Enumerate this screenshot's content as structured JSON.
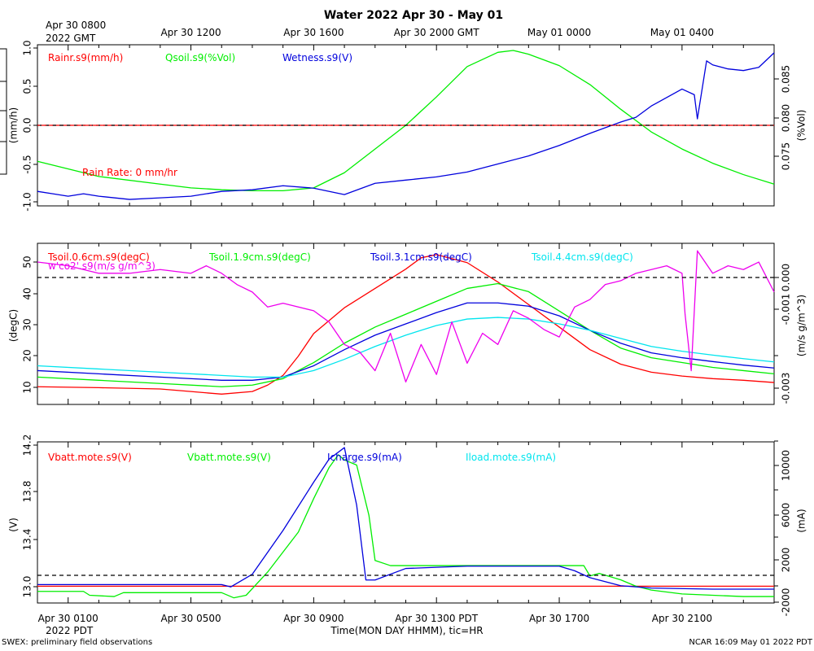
{
  "title": "Water 2022 Apr 30 - May 01",
  "top_time_labels": [
    "Apr 30 0800",
    "Apr 30 1200",
    "Apr 30 1600",
    "Apr 30 2000 GMT",
    "May 01 0000",
    "May 01 0400"
  ],
  "top_year_label": "2022 GMT",
  "bottom_time_labels": [
    "Apr 30 0100",
    "Apr 30 0500",
    "Apr 30 0900",
    "Apr 30 1300 PDT",
    "Apr 30 1700",
    "Apr 30 2100"
  ],
  "bottom_year_label": "2022 PDT",
  "xlabel": "Time(MON DAY HHMM), tic=HR",
  "footer_left": "SWEX: preliminary field observations",
  "footer_right": "NCAR 16:09 May 01 2022 PDT",
  "colors": {
    "red": "#ff0000",
    "green": "#00ee00",
    "blue": "#0000dd",
    "cyan": "#00e5ee",
    "magenta": "#ee00ee",
    "black": "#000000"
  },
  "chart_data": [
    {
      "type": "line",
      "panel": "water",
      "x_unit": "hours since Apr 30 0000 PDT",
      "xlim": [
        0,
        24
      ],
      "left_axis": {
        "label": "(mm/h)",
        "ticks": [
          "1.0",
          "0.5",
          "0.0",
          "-0.5",
          "-1.0"
        ],
        "ylim": [
          -1.0,
          1.0
        ]
      },
      "right_axis": {
        "label": "(%Vol)",
        "ticks": [
          "0.085",
          "0.080",
          "0.075"
        ],
        "ylim": [
          0.0715,
          0.0885
        ]
      },
      "annotation": "Rain Rate: 0 mm/hr",
      "series": [
        {
          "name": "Rainr.s9(mm/h)",
          "color": "red",
          "axis": "left",
          "x": [
            0,
            24
          ],
          "values": [
            0,
            0
          ]
        },
        {
          "name": "Qsoil.s9(%Vol)",
          "color": "green",
          "axis": "right",
          "x": [
            0,
            2,
            4,
            5,
            6,
            7,
            8,
            9,
            10,
            11,
            12,
            13,
            14,
            15,
            15.5,
            16,
            17,
            18,
            19,
            20,
            21,
            22,
            23,
            24
          ],
          "values": [
            0.0762,
            0.0746,
            0.0738,
            0.0734,
            0.0732,
            0.0731,
            0.0731,
            0.0734,
            0.075,
            0.0775,
            0.08,
            0.083,
            0.0862,
            0.0877,
            0.0879,
            0.0875,
            0.0863,
            0.0843,
            0.0817,
            0.0793,
            0.0775,
            0.076,
            0.0748,
            0.0738
          ]
        },
        {
          "name": "Wetness.s9(V)",
          "color": "blue",
          "axis": "none",
          "x": [
            0,
            0.5,
            1,
            1.5,
            2,
            3,
            4,
            5,
            6,
            7,
            8,
            9,
            10,
            11,
            12,
            13,
            14,
            15,
            16,
            17,
            18,
            19,
            19.5,
            20,
            21,
            21.4,
            21.5,
            21.8,
            22,
            22.5,
            23,
            23.5,
            24
          ],
          "values": [
            -0.82,
            -0.85,
            -0.88,
            -0.85,
            -0.88,
            -0.92,
            -0.9,
            -0.88,
            -0.82,
            -0.8,
            -0.75,
            -0.78,
            -0.86,
            -0.72,
            -0.68,
            -0.64,
            -0.58,
            -0.48,
            -0.38,
            -0.25,
            -0.1,
            0.04,
            0.1,
            0.24,
            0.45,
            0.38,
            0.08,
            0.8,
            0.75,
            0.7,
            0.68,
            0.72,
            0.9
          ]
        }
      ]
    },
    {
      "type": "line",
      "panel": "soil-temperature",
      "x_unit": "hours since Apr 30 0000 PDT",
      "xlim": [
        0,
        24
      ],
      "left_axis": {
        "label": "(degC)",
        "ticks": [
          "50",
          "40",
          "30",
          "20",
          "10"
        ],
        "ylim": [
          5,
          55
        ]
      },
      "right_axis": {
        "label": "(m/s g/m^3)",
        "ticks": [
          "0.000",
          "-0.001",
          "-0.003"
        ],
        "ylim": [
          -0.0034,
          0.0009
        ]
      },
      "series": [
        {
          "name": "Tsoil.0.6cm.s9(degC)",
          "color": "red",
          "axis": "left",
          "x": [
            0,
            2,
            4,
            5,
            6,
            7,
            7.5,
            8,
            8.5,
            9,
            10,
            11,
            12,
            12.5,
            13,
            14,
            15,
            16,
            17,
            18,
            19,
            20,
            21,
            22,
            23,
            24
          ],
          "values": [
            10.5,
            10.2,
            9.8,
            9,
            8.2,
            9,
            11,
            14,
            20,
            27,
            35,
            41,
            47,
            50.5,
            51.5,
            49,
            43,
            36,
            29,
            22,
            17.5,
            15,
            13.8,
            13,
            12.5,
            11.8
          ]
        },
        {
          "name": "Tsoil.1.9cm.s9(degC)",
          "color": "green",
          "axis": "left",
          "x": [
            0,
            2,
            4,
            6,
            7,
            8,
            9,
            10,
            11,
            12,
            13,
            14,
            15,
            16,
            17,
            18,
            19,
            20,
            21,
            22,
            23,
            24
          ],
          "values": [
            13.5,
            12.5,
            11.5,
            10.5,
            11,
            13,
            18,
            24,
            29,
            33,
            37,
            41,
            42.5,
            40,
            34,
            28,
            22.5,
            19.5,
            18,
            16.5,
            15.5,
            14.5
          ]
        },
        {
          "name": "Tsoil.3.1cm.s9(degC)",
          "color": "blue",
          "axis": "left",
          "x": [
            0,
            2,
            4,
            6,
            7,
            8,
            9,
            10,
            11,
            12,
            13,
            14,
            15,
            16,
            17,
            18,
            19,
            20,
            21,
            22,
            23,
            24
          ],
          "values": [
            15.5,
            14.5,
            13.5,
            12.5,
            12.5,
            13.5,
            17,
            22,
            26.5,
            30,
            33.5,
            36.5,
            36.5,
            35.5,
            32.5,
            28,
            24,
            21,
            19.5,
            18.3,
            17.2,
            16.3
          ]
        },
        {
          "name": "Tsoil.4.4cm.s9(degC)",
          "color": "cyan",
          "axis": "left",
          "x": [
            0,
            2,
            4,
            6,
            7,
            8,
            9,
            10,
            11,
            12,
            13,
            14,
            15,
            16,
            17,
            18,
            19,
            20,
            21,
            22,
            23,
            24
          ],
          "values": [
            17,
            16,
            15,
            14,
            13.5,
            13.5,
            15.5,
            19,
            23,
            26.5,
            29.5,
            31.5,
            32,
            31.5,
            30,
            28,
            25.5,
            23,
            21.5,
            20.3,
            19.2,
            18.2
          ]
        },
        {
          "name": "w'co2'.s9(m/s g/m^3)",
          "color": "magenta",
          "axis": "right",
          "x": [
            0,
            1,
            2,
            3,
            4,
            5,
            5.5,
            6,
            6.5,
            7,
            7.5,
            8,
            9,
            9.5,
            10,
            10.5,
            11,
            11.5,
            12,
            12.5,
            13,
            13.5,
            14,
            14.5,
            15,
            15.5,
            16,
            16.5,
            17,
            17.5,
            18,
            18.5,
            19,
            19.5,
            20,
            20.5,
            21,
            21.1,
            21.3,
            21.5,
            22,
            22.5,
            23,
            23.5,
            24
          ],
          "values": [
            0.0004,
            0.0003,
            0.0001,
            0.0001,
            0.0002,
            0.0001,
            0.0003,
            0.0001,
            -0.0002,
            -0.0004,
            -0.0008,
            -0.0007,
            -0.0009,
            -0.0012,
            -0.0018,
            -0.002,
            -0.0025,
            -0.0015,
            -0.0028,
            -0.0018,
            -0.0026,
            -0.0012,
            -0.0023,
            -0.0015,
            -0.0018,
            -0.0009,
            -0.0011,
            -0.0014,
            -0.0016,
            -0.0008,
            -0.0006,
            -0.0002,
            -0.0001,
            0.0001,
            0.0002,
            0.0003,
            0.0001,
            -0.001,
            -0.0025,
            0.0007,
            0.0001,
            0.0003,
            0.0002,
            0.0004,
            -0.0004
          ]
        }
      ]
    },
    {
      "type": "line",
      "panel": "power",
      "x_unit": "hours since Apr 30 0000 PDT",
      "xlim": [
        0,
        24
      ],
      "left_axis": {
        "label": "(V)",
        "ticks": [
          "14.2",
          "13.8",
          "13.4",
          "13.0"
        ],
        "ylim": [
          12.97,
          14.22
        ]
      },
      "right_axis": {
        "label": "(mA)",
        "ticks": [
          "10000",
          "6000",
          "2000",
          "-2000"
        ],
        "ylim": [
          -2500,
          11500
        ]
      },
      "series": [
        {
          "name": "Vbatt.mote.s9(V)",
          "color": "red",
          "axis": "left",
          "x": [
            0,
            24
          ],
          "values": [
            13.1,
            13.1
          ]
        },
        {
          "name": "Vbatt.mote.s9(V)",
          "color": "green",
          "axis": "left",
          "x": [
            0,
            1.5,
            1.7,
            2.5,
            2.8,
            5,
            6,
            6.4,
            6.8,
            7.5,
            8.5,
            9,
            9.5,
            9.8,
            10,
            10.4,
            10.8,
            11,
            11.5,
            12,
            13,
            14,
            15,
            16,
            17,
            17.8,
            18,
            18.3,
            19,
            19.5,
            20,
            21,
            22,
            23,
            24
          ],
          "values": [
            13.06,
            13.06,
            13.03,
            13.02,
            13.05,
            13.05,
            13.05,
            13.01,
            13.03,
            13.21,
            13.52,
            13.78,
            14.02,
            14.12,
            14.08,
            14.04,
            13.65,
            13.3,
            13.26,
            13.26,
            13.26,
            13.26,
            13.26,
            13.26,
            13.26,
            13.26,
            13.18,
            13.2,
            13.15,
            13.1,
            13.07,
            13.04,
            13.03,
            13.02,
            13.02
          ]
        },
        {
          "name": "Icharge.s9(mA)",
          "color": "blue",
          "axis": "right",
          "x": [
            0,
            6,
            6.3,
            7,
            8,
            9,
            9.5,
            10,
            10.4,
            10.7,
            11,
            12,
            13,
            14,
            15,
            16,
            17,
            17.5,
            18,
            19,
            20,
            22,
            24
          ],
          "values": [
            -900,
            -900,
            -1100,
            0,
            3800,
            8000,
            10000,
            11000,
            6000,
            -500,
            -500,
            500,
            600,
            700,
            700,
            700,
            700,
            300,
            -300,
            -1000,
            -1200,
            -1300,
            -1300
          ]
        },
        {
          "name": "Iload.mote.s9(mA)",
          "color": "cyan",
          "axis": "right",
          "x": [],
          "values": []
        }
      ]
    }
  ]
}
